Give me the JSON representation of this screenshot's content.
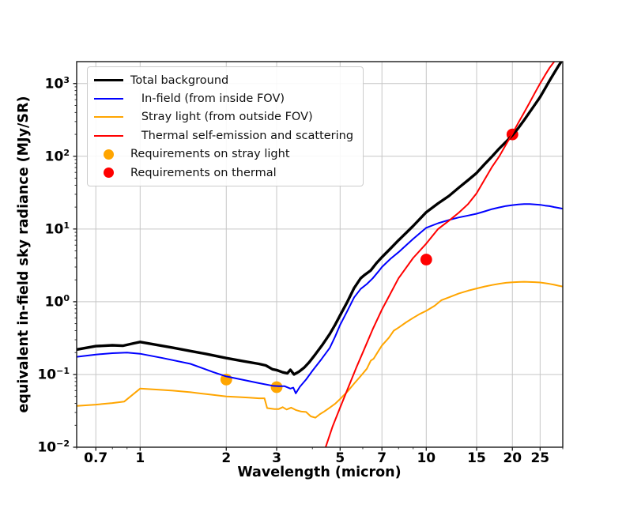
{
  "figure": {
    "background": "#ffffff"
  },
  "colors": {
    "grid": "#c6c6c6",
    "spine": "#1a1a1a",
    "tick": "#1a1a1a",
    "legend_border": "#cccccc"
  },
  "chart_data": {
    "type": "line",
    "title": "",
    "xlabel": "Wavelength (micron)",
    "ylabel": "equivalent in-field sky radiance (MJy/SR)",
    "x_scale": "log",
    "y_scale": "log",
    "xlim": [
      0.6,
      30
    ],
    "ylim": [
      0.01,
      2000
    ],
    "grid": true,
    "legend_position": "upper-left",
    "x_ticks": [
      {
        "value": 0.7,
        "label": "0.7"
      },
      {
        "value": 1,
        "label": "1"
      },
      {
        "value": 2,
        "label": "2"
      },
      {
        "value": 3,
        "label": "3"
      },
      {
        "value": 5,
        "label": "5"
      },
      {
        "value": 7,
        "label": "7"
      },
      {
        "value": 10,
        "label": "10"
      },
      {
        "value": 15,
        "label": "15"
      },
      {
        "value": 20,
        "label": "20"
      },
      {
        "value": 25,
        "label": "25"
      }
    ],
    "x_minor_ticks": [
      0.6,
      0.8,
      0.9,
      4,
      6,
      8,
      9,
      30
    ],
    "y_ticks": [
      {
        "value": 0.01,
        "label": "10⁻²",
        "base": "10",
        "exp": "−2"
      },
      {
        "value": 0.1,
        "label": "10⁻¹",
        "base": "10",
        "exp": "−1"
      },
      {
        "value": 1,
        "label": "10⁰",
        "base": "10",
        "exp": "0"
      },
      {
        "value": 10,
        "label": "10¹",
        "base": "10",
        "exp": "1"
      },
      {
        "value": 100,
        "label": "10²",
        "base": "10",
        "exp": "2"
      },
      {
        "value": 1000,
        "label": "10³",
        "base": "10",
        "exp": "3"
      }
    ],
    "series": [
      {
        "name": "Total background",
        "color": "#000000",
        "width": 3.4,
        "points": [
          [
            0.6,
            0.22
          ],
          [
            0.7,
            0.245
          ],
          [
            0.8,
            0.252
          ],
          [
            0.87,
            0.248
          ],
          [
            0.95,
            0.268
          ],
          [
            1.0,
            0.28
          ],
          [
            1.1,
            0.262
          ],
          [
            1.3,
            0.233
          ],
          [
            1.5,
            0.21
          ],
          [
            1.7,
            0.192
          ],
          [
            2.0,
            0.168
          ],
          [
            2.3,
            0.152
          ],
          [
            2.6,
            0.14
          ],
          [
            2.75,
            0.133
          ],
          [
            2.9,
            0.118
          ],
          [
            3.0,
            0.115
          ],
          [
            3.15,
            0.107
          ],
          [
            3.27,
            0.104
          ],
          [
            3.35,
            0.116
          ],
          [
            3.45,
            0.1
          ],
          [
            3.6,
            0.11
          ],
          [
            3.75,
            0.125
          ],
          [
            3.9,
            0.148
          ],
          [
            4.1,
            0.19
          ],
          [
            4.35,
            0.26
          ],
          [
            4.6,
            0.36
          ],
          [
            4.8,
            0.48
          ],
          [
            5.0,
            0.65
          ],
          [
            5.3,
            1.0
          ],
          [
            5.6,
            1.55
          ],
          [
            5.9,
            2.1
          ],
          [
            6.1,
            2.35
          ],
          [
            6.4,
            2.7
          ],
          [
            6.7,
            3.4
          ],
          [
            7.0,
            4.1
          ],
          [
            7.5,
            5.4
          ],
          [
            8.0,
            7.0
          ],
          [
            8.5,
            8.8
          ],
          [
            9.0,
            11
          ],
          [
            10,
            17
          ],
          [
            11,
            22.5
          ],
          [
            12,
            28.5
          ],
          [
            13,
            37
          ],
          [
            14,
            47
          ],
          [
            15,
            59
          ],
          [
            16,
            78
          ],
          [
            17,
            100
          ],
          [
            18,
            128
          ],
          [
            19,
            158
          ],
          [
            20,
            195
          ],
          [
            21,
            245
          ],
          [
            22,
            315
          ],
          [
            23,
            405
          ],
          [
            24,
            515
          ],
          [
            25,
            650
          ],
          [
            26,
            850
          ],
          [
            27,
            1100
          ],
          [
            28,
            1400
          ],
          [
            29,
            1750
          ],
          [
            30,
            2150
          ]
        ]
      },
      {
        "name": "In-field (from inside FOV)",
        "color": "#0000ff",
        "width": 2,
        "points": [
          [
            0.6,
            0.175
          ],
          [
            0.7,
            0.188
          ],
          [
            0.8,
            0.196
          ],
          [
            0.9,
            0.2
          ],
          [
            1.0,
            0.193
          ],
          [
            1.2,
            0.168
          ],
          [
            1.5,
            0.14
          ],
          [
            1.8,
            0.108
          ],
          [
            2.0,
            0.094
          ],
          [
            2.3,
            0.084
          ],
          [
            2.6,
            0.076
          ],
          [
            2.9,
            0.07
          ],
          [
            3.05,
            0.069
          ],
          [
            3.2,
            0.069
          ],
          [
            3.35,
            0.064
          ],
          [
            3.43,
            0.066
          ],
          [
            3.5,
            0.055
          ],
          [
            3.62,
            0.068
          ],
          [
            3.8,
            0.085
          ],
          [
            4.0,
            0.112
          ],
          [
            4.3,
            0.162
          ],
          [
            4.6,
            0.232
          ],
          [
            4.8,
            0.33
          ],
          [
            5.0,
            0.48
          ],
          [
            5.3,
            0.75
          ],
          [
            5.6,
            1.15
          ],
          [
            5.9,
            1.5
          ],
          [
            6.2,
            1.75
          ],
          [
            6.5,
            2.1
          ],
          [
            6.8,
            2.6
          ],
          [
            7.0,
            3.0
          ],
          [
            7.5,
            3.9
          ],
          [
            8.0,
            4.8
          ],
          [
            9.0,
            7.3
          ],
          [
            10,
            10.4
          ],
          [
            11,
            12.0
          ],
          [
            12,
            13.3
          ],
          [
            13,
            14.4
          ],
          [
            14,
            15.3
          ],
          [
            15,
            16.2
          ],
          [
            16,
            17.5
          ],
          [
            17,
            18.8
          ],
          [
            18,
            19.8
          ],
          [
            19,
            20.7
          ],
          [
            20,
            21.3
          ],
          [
            21,
            21.8
          ],
          [
            22,
            22.0
          ],
          [
            23,
            22.0
          ],
          [
            24,
            21.8
          ],
          [
            25,
            21.5
          ],
          [
            26,
            21.0
          ],
          [
            27,
            20.6
          ],
          [
            28,
            20.0
          ],
          [
            29,
            19.5
          ],
          [
            30,
            19.0
          ]
        ]
      },
      {
        "name": "Stray light (from outside FOV)",
        "color": "#ffa500",
        "width": 2,
        "points": [
          [
            0.6,
            0.037
          ],
          [
            0.7,
            0.0385
          ],
          [
            0.8,
            0.0405
          ],
          [
            0.88,
            0.0425
          ],
          [
            1.0,
            0.064
          ],
          [
            1.15,
            0.062
          ],
          [
            1.3,
            0.06
          ],
          [
            1.5,
            0.057
          ],
          [
            1.75,
            0.053
          ],
          [
            2.0,
            0.05
          ],
          [
            2.2,
            0.049
          ],
          [
            2.4,
            0.048
          ],
          [
            2.6,
            0.047
          ],
          [
            2.72,
            0.047
          ],
          [
            2.78,
            0.0345
          ],
          [
            2.95,
            0.0335
          ],
          [
            3.05,
            0.0335
          ],
          [
            3.15,
            0.0355
          ],
          [
            3.25,
            0.033
          ],
          [
            3.37,
            0.035
          ],
          [
            3.5,
            0.0325
          ],
          [
            3.65,
            0.031
          ],
          [
            3.8,
            0.0305
          ],
          [
            3.95,
            0.0265
          ],
          [
            4.1,
            0.0255
          ],
          [
            4.25,
            0.0285
          ],
          [
            4.4,
            0.031
          ],
          [
            4.6,
            0.035
          ],
          [
            4.8,
            0.0395
          ],
          [
            5.0,
            0.046
          ],
          [
            5.3,
            0.058
          ],
          [
            5.6,
            0.075
          ],
          [
            5.9,
            0.095
          ],
          [
            6.2,
            0.12
          ],
          [
            6.4,
            0.155
          ],
          [
            6.55,
            0.165
          ],
          [
            6.8,
            0.21
          ],
          [
            7.0,
            0.25
          ],
          [
            7.4,
            0.32
          ],
          [
            7.7,
            0.4
          ],
          [
            8.0,
            0.44
          ],
          [
            8.5,
            0.52
          ],
          [
            9.0,
            0.6
          ],
          [
            9.5,
            0.68
          ],
          [
            10,
            0.75
          ],
          [
            10.7,
            0.88
          ],
          [
            11.3,
            1.05
          ],
          [
            12,
            1.15
          ],
          [
            13,
            1.3
          ],
          [
            14,
            1.42
          ],
          [
            15,
            1.52
          ],
          [
            16,
            1.62
          ],
          [
            17,
            1.7
          ],
          [
            18,
            1.77
          ],
          [
            19,
            1.82
          ],
          [
            20,
            1.85
          ],
          [
            21,
            1.87
          ],
          [
            22,
            1.88
          ],
          [
            23,
            1.87
          ],
          [
            24,
            1.86
          ],
          [
            25,
            1.84
          ],
          [
            26,
            1.8
          ],
          [
            27,
            1.76
          ],
          [
            28,
            1.71
          ],
          [
            29,
            1.66
          ],
          [
            30,
            1.62
          ]
        ]
      },
      {
        "name": "Thermal self-emission and scattering",
        "color": "#ff0000",
        "width": 2,
        "points": [
          [
            4.4,
            0.009
          ],
          [
            4.45,
            0.01
          ],
          [
            4.7,
            0.019
          ],
          [
            5.0,
            0.035
          ],
          [
            5.3,
            0.062
          ],
          [
            5.7,
            0.125
          ],
          [
            6.0,
            0.2
          ],
          [
            6.5,
            0.42
          ],
          [
            7.0,
            0.78
          ],
          [
            7.24,
            1.0
          ],
          [
            8.0,
            2.1
          ],
          [
            9.0,
            4.0
          ],
          [
            10,
            6.3
          ],
          [
            11,
            10
          ],
          [
            12,
            13
          ],
          [
            13,
            16.8
          ],
          [
            14,
            22
          ],
          [
            15,
            31
          ],
          [
            16,
            48
          ],
          [
            17,
            72
          ],
          [
            18,
            100
          ],
          [
            19,
            145
          ],
          [
            20,
            205
          ],
          [
            21,
            290
          ],
          [
            22,
            400
          ],
          [
            23,
            550
          ],
          [
            24,
            750
          ],
          [
            25,
            1000
          ],
          [
            26,
            1300
          ],
          [
            27,
            1650
          ],
          [
            28,
            2000
          ],
          [
            28.6,
            2300
          ]
        ]
      }
    ],
    "scatter": [
      {
        "name": "Requirements on stray light",
        "color": "#ffa500",
        "radius": 7.4,
        "points": [
          [
            2,
            0.085
          ],
          [
            3,
            0.067
          ]
        ]
      },
      {
        "name": "Requirements on thermal",
        "color": "#ff0000",
        "radius": 7.4,
        "points": [
          [
            10,
            3.8
          ],
          [
            20,
            200
          ]
        ]
      }
    ],
    "legend": {
      "items": [
        {
          "label": "Total background",
          "color": "#000000",
          "type": "line",
          "lw": 3.4
        },
        {
          "label": "   In-field (from inside FOV)",
          "color": "#0000ff",
          "type": "line",
          "lw": 2
        },
        {
          "label": "   Stray light (from outside FOV)",
          "color": "#ffa500",
          "type": "line",
          "lw": 2
        },
        {
          "label": "   Thermal self-emission and scattering",
          "color": "#ff0000",
          "type": "line",
          "lw": 2
        },
        {
          "label": "Requirements on stray light",
          "color": "#ffa500",
          "type": "dot"
        },
        {
          "label": "Requirements on thermal",
          "color": "#ff0000",
          "type": "dot"
        }
      ]
    }
  }
}
